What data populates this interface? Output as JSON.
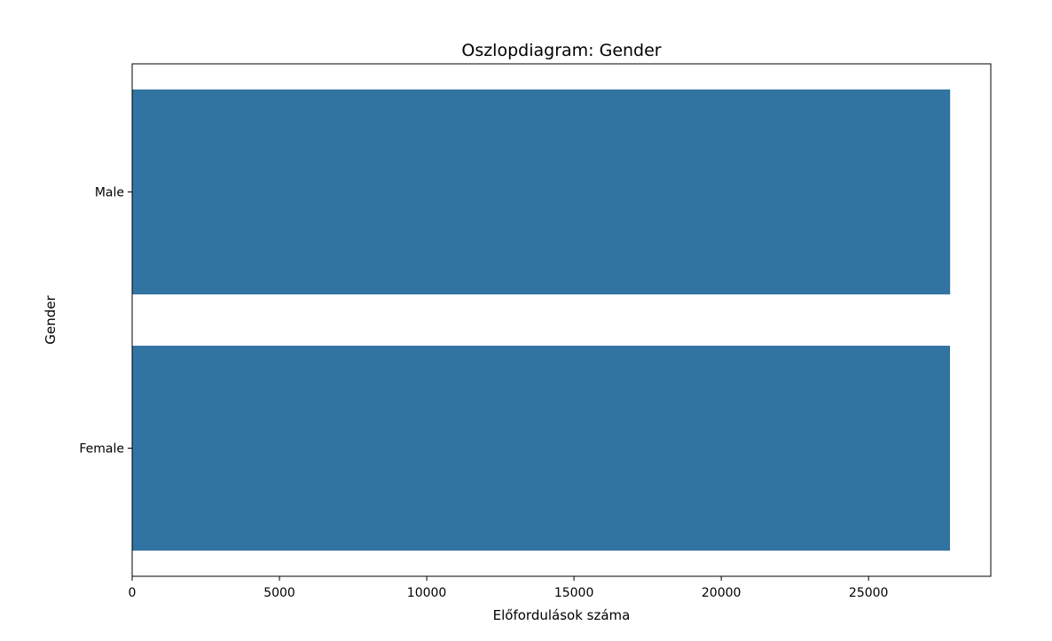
{
  "chart_data": {
    "type": "bar",
    "orientation": "horizontal",
    "title": "Oszlopdiagram: Gender",
    "xlabel": "Előfordulások száma",
    "ylabel": "Gender",
    "categories": [
      "Male",
      "Female"
    ],
    "values": [
      27770,
      27765
    ],
    "xlim": [
      0,
      29150
    ],
    "xticks": [
      0,
      5000,
      10000,
      15000,
      20000,
      25000
    ],
    "xtick_labels": [
      "0",
      "5000",
      "10000",
      "15000",
      "20000",
      "25000"
    ],
    "bar_color": "#3274a1",
    "grid": false,
    "legend": "none"
  }
}
